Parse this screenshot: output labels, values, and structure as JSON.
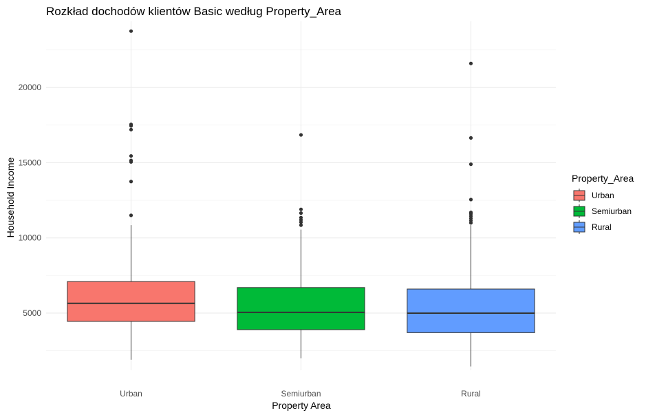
{
  "chart_data": {
    "type": "boxplot",
    "title": "Rozkład dochodów klientów Basic według Property_Area",
    "xlabel": "Property Area",
    "ylabel": "Household Income",
    "categories": [
      "Urban",
      "Semiurban",
      "Rural"
    ],
    "ylim": [
      1200,
      24400
    ],
    "yticks": [
      5000,
      10000,
      15000,
      20000
    ],
    "ytick_labels": [
      "5000",
      "10000",
      "15000",
      "20000"
    ],
    "grid": true,
    "legend": {
      "title": "Property_Area",
      "position": "right",
      "entries": [
        "Urban",
        "Semiurban",
        "Rural"
      ]
    },
    "series": [
      {
        "name": "Urban",
        "color": "#F8766D",
        "whisker_low": 1900,
        "q1": 4450,
        "median": 5650,
        "q3": 7100,
        "whisker_high": 10850,
        "outliers": [
          11500,
          13750,
          15050,
          15150,
          15450,
          17200,
          17450,
          17550,
          23750
        ]
      },
      {
        "name": "Semiurban",
        "color": "#00BA38",
        "whisker_low": 2000,
        "q1": 3900,
        "median": 5050,
        "q3": 6700,
        "whisker_high": 10550,
        "outliers": [
          10850,
          11050,
          11200,
          11350,
          11650,
          11900,
          16850
        ]
      },
      {
        "name": "Rural",
        "color": "#619CFF",
        "whisker_low": 1450,
        "q1": 3700,
        "median": 5000,
        "q3": 6600,
        "whisker_high": 10850,
        "outliers": [
          11000,
          11150,
          11300,
          11450,
          11600,
          11700,
          12550,
          14900,
          16650,
          21600
        ]
      }
    ]
  }
}
